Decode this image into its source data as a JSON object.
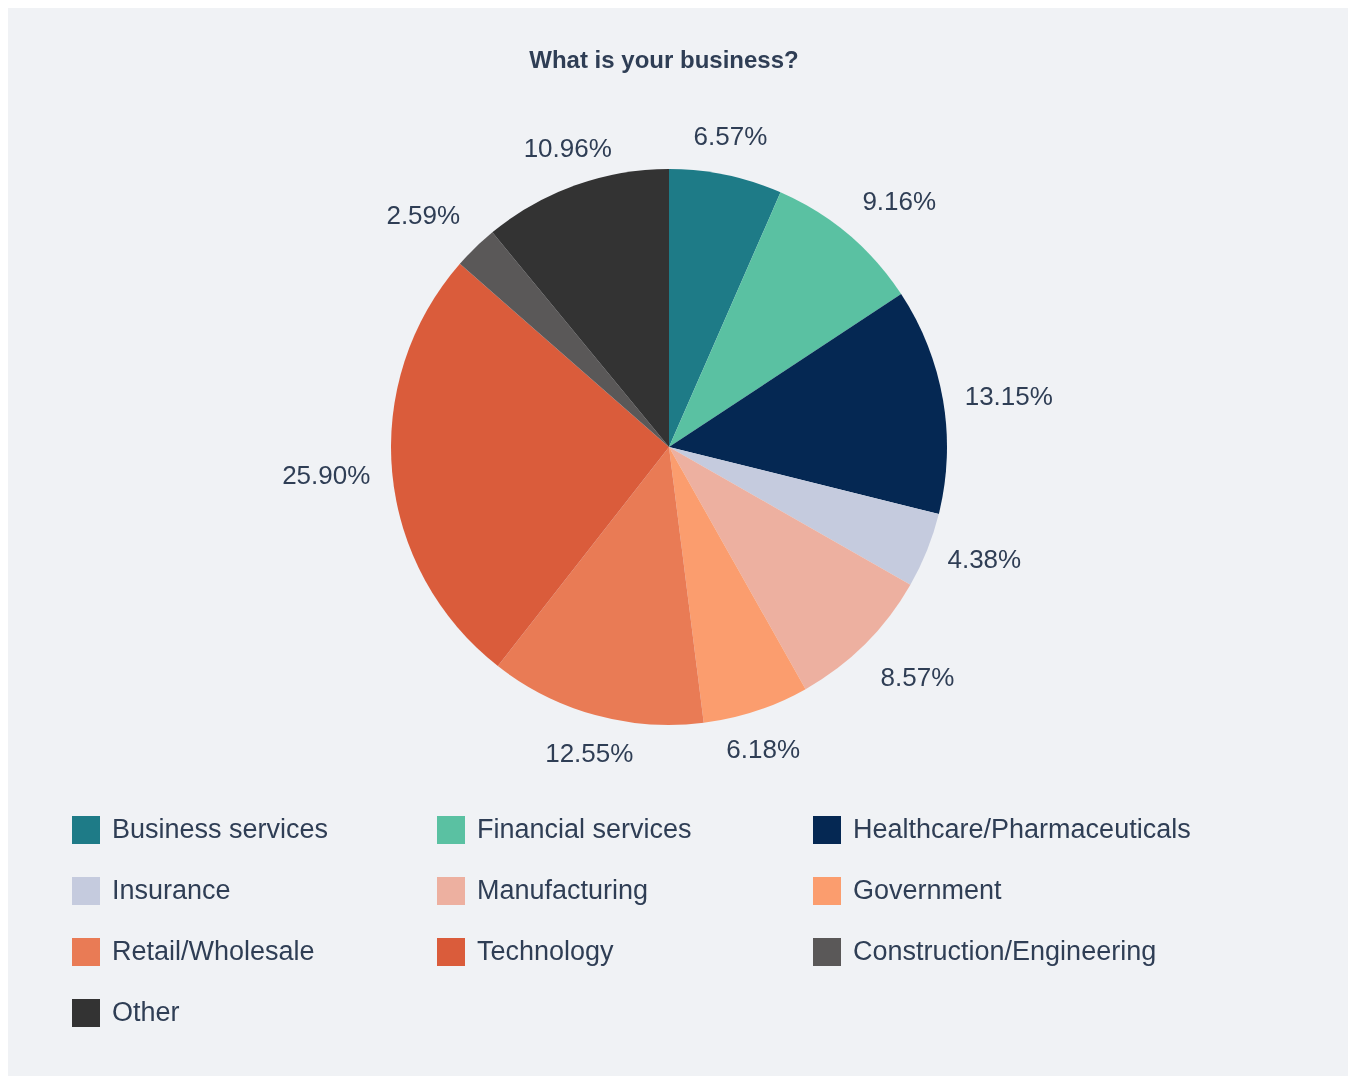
{
  "chart_data": {
    "type": "pie",
    "title": "What is your business?",
    "categories": [
      "Business services",
      "Financial services",
      "Healthcare/Pharmaceuticals",
      "Insurance",
      "Manufacturing",
      "Government",
      "Retail/Wholesale",
      "Technology",
      "Construction/Engineering",
      "Other"
    ],
    "values": [
      6.57,
      9.16,
      13.15,
      4.38,
      8.57,
      6.18,
      12.55,
      25.9,
      2.59,
      10.96
    ],
    "value_labels": [
      "6.57%",
      "9.16%",
      "13.15%",
      "4.38%",
      "8.57%",
      "6.18%",
      "12.55%",
      "25.90%",
      "2.59%",
      "10.96%"
    ],
    "colors": [
      "#1e7b87",
      "#5ac1a2",
      "#052853",
      "#c5cbde",
      "#edb0a0",
      "#fb9d6e",
      "#e97b55",
      "#da5c3b",
      "#5a5858",
      "#333333"
    ],
    "legend": "bottom"
  }
}
